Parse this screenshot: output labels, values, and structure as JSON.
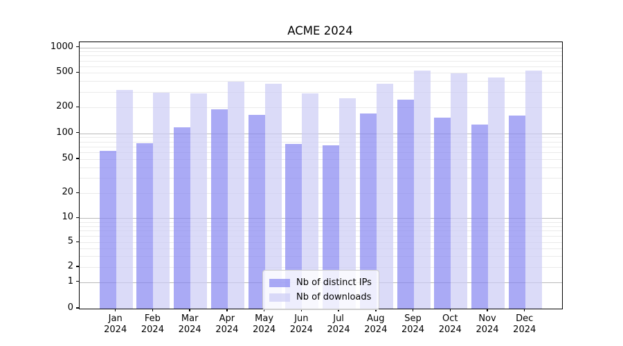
{
  "chart_data": {
    "type": "bar",
    "title": "ACME 2024",
    "categories": [
      "Jan",
      "Feb",
      "Mar",
      "Apr",
      "May",
      "Jun",
      "Jul",
      "Aug",
      "Sep",
      "Oct",
      "Nov",
      "Dec"
    ],
    "category_year": "2024",
    "series": [
      {
        "name": "Nb of distinct IPs",
        "color": "rgba(134,134,241,0.7)",
        "values": [
          62,
          77,
          118,
          189,
          165,
          75,
          72,
          171,
          246,
          153,
          126,
          161
        ]
      },
      {
        "name": "Nb of downloads",
        "color": "rgba(204,204,245,0.7)",
        "values": [
          318,
          298,
          290,
          395,
          373,
          290,
          253,
          372,
          531,
          494,
          440,
          529
        ]
      }
    ],
    "yticks": [
      0,
      1,
      2,
      5,
      10,
      20,
      50,
      100,
      200,
      500,
      1000
    ],
    "ylim": [
      0,
      1000
    ],
    "yscale": "log-above-1-with-linear-zero",
    "legend_position": "lower center",
    "grid": "horizontal major and minor",
    "colors": {
      "major_grid": "#b9b9b9",
      "minor_grid": "#eaeaea",
      "spine": "#000000",
      "text": "#000000"
    }
  }
}
